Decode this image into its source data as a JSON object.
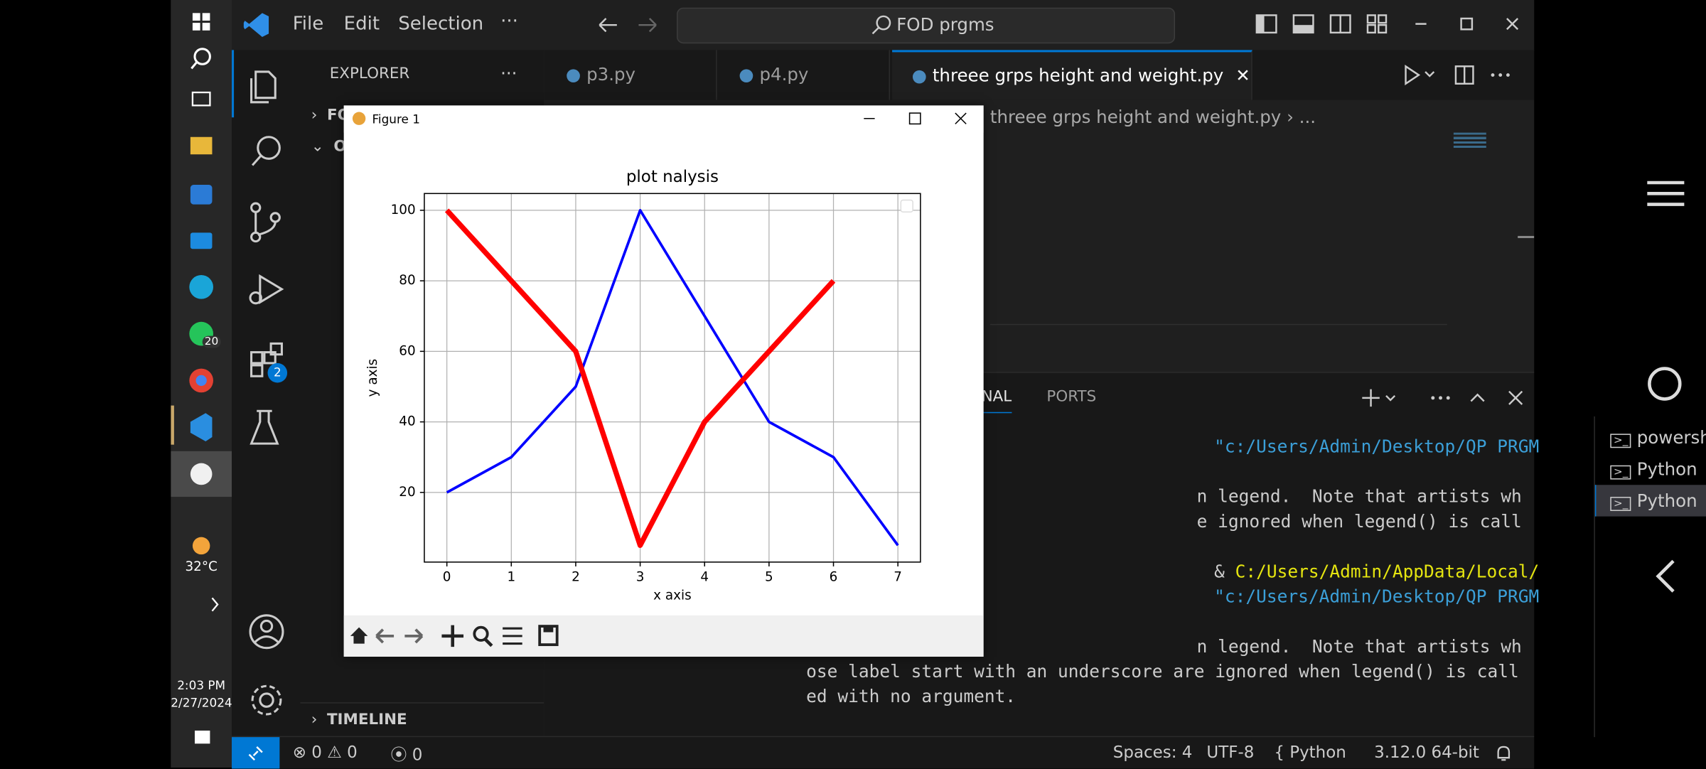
{
  "taskbar": {
    "whatsapp_badge": "20",
    "weather": "32°C",
    "time": "2:03 PM",
    "date": "2/27/2024"
  },
  "menu": [
    "File",
    "Edit",
    "Selection",
    "···"
  ],
  "search": "FOD prgms",
  "activity_badge": "2",
  "sidebar": {
    "title": "EXPLORER",
    "more": "···",
    "items": [
      "FO",
      "O"
    ],
    "timeline": "TIMELINE"
  },
  "tabs": [
    "p3.py",
    "p4.py",
    "threee grps height and weight.py"
  ],
  "breadcrumb": [
    "threee grps height and weight.py",
    "..."
  ],
  "panel_tabs": [
    "NAL",
    "PORTS"
  ],
  "terminal": {
    "lines": [
      "\"c:/Users/Admin/Desktop/QP PRGM",
      "n legend.  Note that artists wh",
      "e ignored when legend() is call",
      [
        "&",
        "C:/Users/Admin/AppData/Local/"
      ],
      "\"c:/Users/Admin/Desktop/QP PRGM",
      "n legend.  Note that artists wh",
      "ose label start with an underscore are ignored when legend() is call",
      "ed with no argument."
    ]
  },
  "terminals": [
    "powershell",
    "Python",
    "Python"
  ],
  "status": {
    "errors": "0",
    "warnings": "0",
    "ports": "0",
    "spaces": "Spaces: 4",
    "encoding": "UTF-8",
    "language": "Python",
    "interpreter": "3.12.0 64-bit"
  },
  "figure": {
    "window_title": "Figure 1"
  },
  "chart_data": {
    "type": "line",
    "title": "plot nalysis",
    "x_label": "x axis",
    "y_label": "y axis",
    "x": [
      0,
      1,
      2,
      3,
      4,
      5,
      6,
      7
    ],
    "series": [
      {
        "color": "blue",
        "linewidth": 1.5,
        "values": [
          20,
          30,
          50,
          100,
          70,
          40,
          30,
          5
        ]
      },
      {
        "color": "red",
        "linewidth": 3,
        "values": [
          100,
          80,
          60,
          5,
          40,
          60,
          80,
          null
        ]
      }
    ],
    "xlim": [
      -0.35,
      7.35
    ],
    "ylim": [
      0.25,
      104.75
    ],
    "xticks": [
      0,
      1,
      2,
      3,
      4,
      5,
      6,
      7
    ],
    "yticks": [
      20,
      40,
      60,
      80,
      100
    ],
    "grid": true
  }
}
